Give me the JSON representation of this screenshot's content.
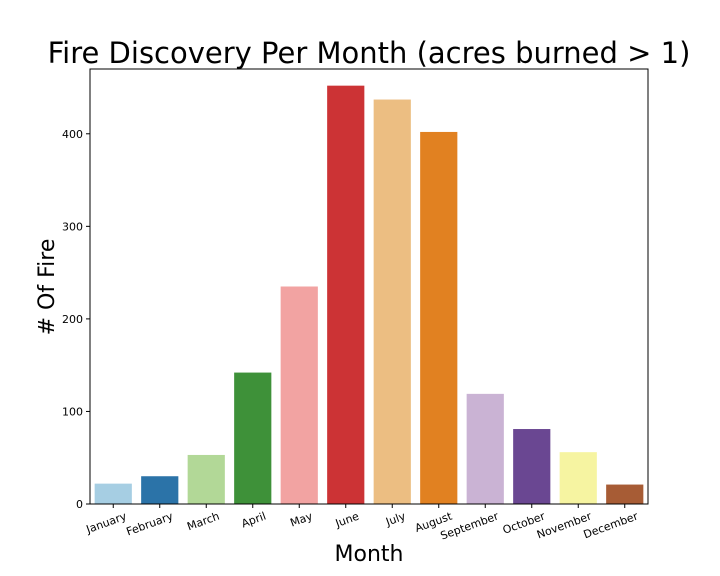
{
  "chart_data": {
    "type": "bar",
    "title": "Fire Discovery Per Month (acres burned > 1)",
    "xlabel": "Month",
    "ylabel": "# Of Fire",
    "ylim": [
      0,
      470
    ],
    "yticks": [
      0,
      100,
      200,
      300,
      400
    ],
    "grid": false,
    "categories": [
      "January",
      "February",
      "March",
      "April",
      "May",
      "June",
      "July",
      "August",
      "September",
      "October",
      "November",
      "December"
    ],
    "values": [
      22,
      30,
      53,
      142,
      235,
      452,
      437,
      402,
      119,
      81,
      56,
      21
    ],
    "colors": [
      "#a6cee3",
      "#2b73a8",
      "#b2d897",
      "#3e9139",
      "#f2a3a2",
      "#cc3335",
      "#ecbe82",
      "#e18121",
      "#cab3d4",
      "#6a4792",
      "#f6f4a1",
      "#a75c35"
    ]
  }
}
